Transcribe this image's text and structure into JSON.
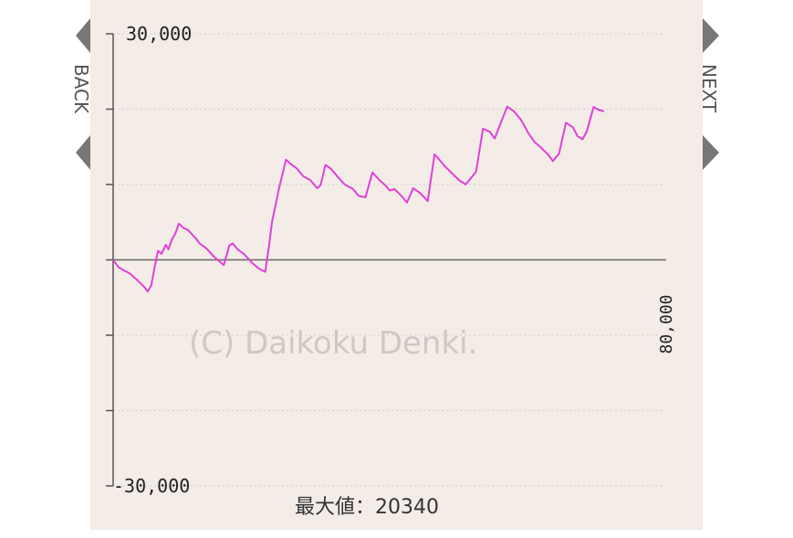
{
  "colors": {
    "panel_background": "#f3ece7",
    "series": "#e040d8"
  },
  "nav": {
    "back_label": "BACK",
    "next_label": "NEXT",
    "back_icon": "arrow-left-icon",
    "next_icon": "arrow-right-icon"
  },
  "watermark": "(C) Daikoku Denki.",
  "footer": {
    "max_label": "最大値：20340"
  },
  "chart_data": {
    "type": "line",
    "title": "",
    "xlabel": "",
    "ylabel": "",
    "xlim": [
      0,
      80000
    ],
    "ylim": [
      -30000,
      30000
    ],
    "y_tick_labels": [
      "30,000",
      "-30,000"
    ],
    "x_max_label": "80,000",
    "grid": true,
    "series": [
      {
        "x": [
          0,
          800,
          1600,
          2400,
          3500,
          4500,
          5000,
          5500,
          6000,
          6500,
          7000,
          7600,
          8000,
          8500,
          9000,
          9500,
          10200,
          10800,
          11500,
          12000,
          12500,
          13500,
          14500,
          15500,
          16000,
          16800,
          17300,
          18000,
          19000,
          20000,
          21000,
          22000,
          22500,
          23000,
          24000,
          25000,
          25700,
          26500,
          27500,
          28500,
          29500,
          30000,
          30700,
          31500,
          32500,
          33500,
          34700,
          35500,
          36500,
          37500,
          38500,
          39500,
          40000,
          40700,
          41700,
          42500,
          43400,
          44500,
          45500,
          46500,
          47000,
          48000,
          49000,
          50000,
          51000,
          52500,
          53500,
          54500,
          55200,
          56000,
          57000,
          58000,
          59000,
          59500,
          60000,
          61000,
          62000,
          63000,
          63600,
          64500,
          65500,
          66500,
          67200,
          67900,
          68500,
          69500,
          70000,
          71000
        ],
        "y": [
          0,
          -1000,
          -1400,
          -1800,
          -2700,
          -3600,
          -4200,
          -3400,
          -1000,
          1200,
          800,
          2000,
          1400,
          2700,
          3500,
          4800,
          4200,
          4000,
          3300,
          2800,
          2200,
          1500,
          500,
          -300,
          -700,
          1900,
          2200,
          1400,
          700,
          -300,
          -1100,
          -1600,
          1500,
          5100,
          9500,
          13300,
          12700,
          12200,
          11100,
          10600,
          9500,
          9900,
          12600,
          12100,
          11000,
          10000,
          9400,
          8500,
          8300,
          11600,
          10600,
          9800,
          9200,
          9400,
          8500,
          7600,
          9500,
          8800,
          7800,
          14000,
          13500,
          12400,
          11500,
          10600,
          10000,
          11700,
          17400,
          17000,
          16100,
          18000,
          20340,
          19700,
          18600,
          17800,
          16900,
          15600,
          14800,
          13900,
          13100,
          14100,
          18200,
          17600,
          16400,
          16000,
          17000,
          20300,
          20000,
          19700
        ]
      }
    ]
  }
}
